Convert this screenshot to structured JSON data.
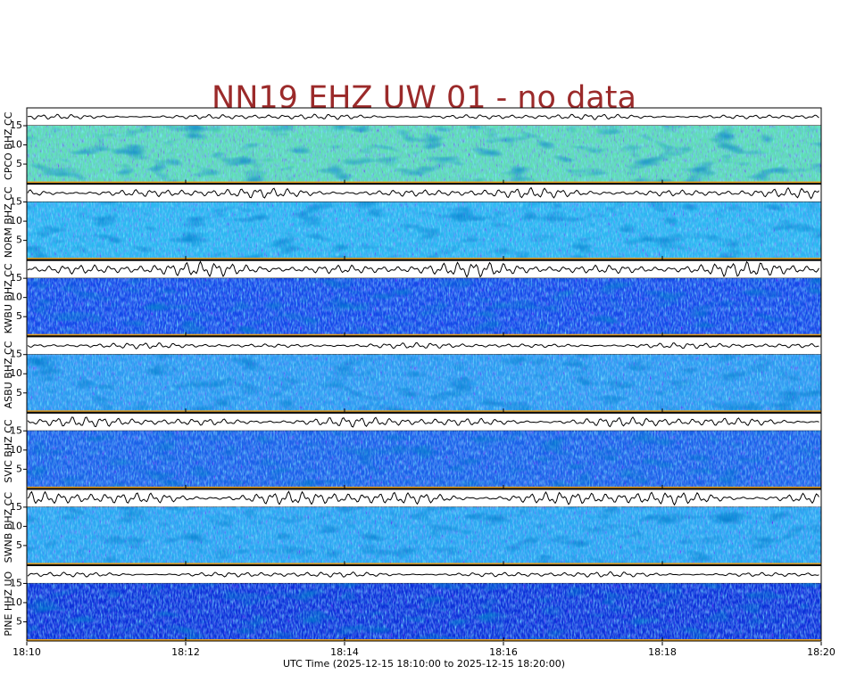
{
  "chart_data": {
    "type": "spectrogram",
    "title": "NN19 EHZ UW 01 - no data",
    "xlabel": "UTC Time (2025-12-15 18:10:00 to 2025-12-15 18:20:00)",
    "xlim": [
      0,
      10
    ],
    "xticks": [
      {
        "value": 0,
        "label": "18:10"
      },
      {
        "value": 2,
        "label": "18:12"
      },
      {
        "value": 4,
        "label": "18:14"
      },
      {
        "value": 6,
        "label": "18:16"
      },
      {
        "value": 8,
        "label": "18:18"
      },
      {
        "value": 10,
        "label": "18:20"
      }
    ],
    "ylim": [
      0,
      15
    ],
    "yticks": [
      5,
      10,
      15
    ],
    "panels": [
      {
        "name": "CPCO BHZ CC",
        "color": "#5fe0b0"
      },
      {
        "name": "NORM BHZ CC",
        "color": "#2ab8f0"
      },
      {
        "name": "KWBU BHZ CC",
        "color": "#1448e8"
      },
      {
        "name": "ASBU BHZ CC",
        "color": "#2a9cf0"
      },
      {
        "name": "SVIC BHZ CC",
        "color": "#1a60e8"
      },
      {
        "name": "SWNB BHZ CC",
        "color": "#28a8f0"
      },
      {
        "name": "PINE HHZ UO",
        "color": "#0c30d8"
      }
    ]
  }
}
